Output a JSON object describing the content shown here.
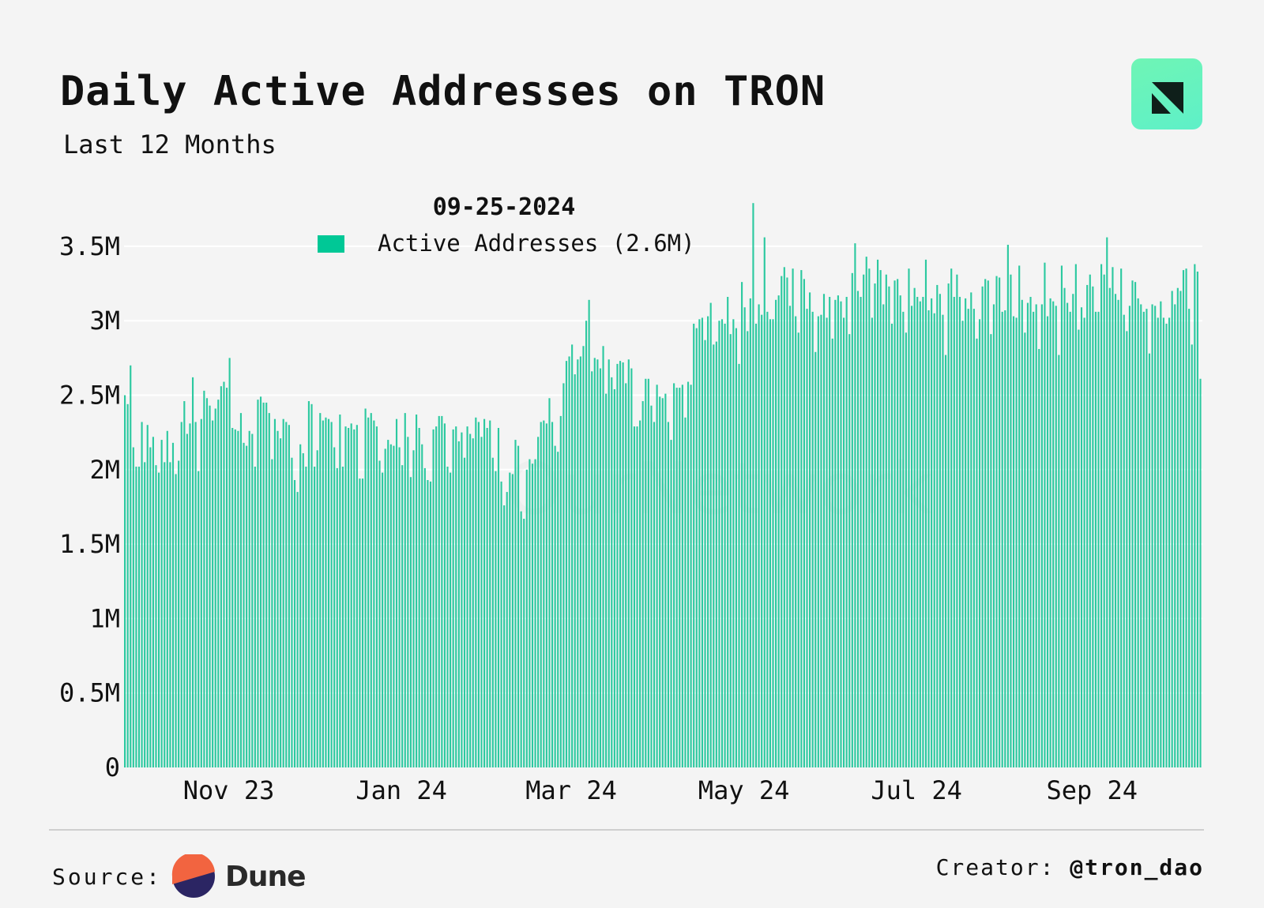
{
  "header": {
    "title": "Daily Active Addresses on TRON",
    "subtitle": "Last 12 Months"
  },
  "logo": {
    "icon": "ournetwork-logo-icon",
    "color": "#5ef0c8"
  },
  "watermark": "OurNetwork",
  "footer": {
    "source_label": "Source:",
    "source_name": "Dune",
    "creator_label": "Creator:",
    "creator_handle": "@tron_dao"
  },
  "tooltip": {
    "date": "09-25-2024",
    "series_label": "Active Addresses (2.6M)"
  },
  "colors": {
    "bar": "#2cc9a0",
    "background": "#f4f4f4",
    "accent": "#00c896"
  },
  "chart_data": {
    "type": "bar",
    "ylim": [
      0,
      3800000
    ],
    "y_ticks": [
      {
        "value": 0,
        "label": "0"
      },
      {
        "value": 500000,
        "label": "0.5M"
      },
      {
        "value": 1000000,
        "label": "1M"
      },
      {
        "value": 1500000,
        "label": "1.5M"
      },
      {
        "value": 2000000,
        "label": "2M"
      },
      {
        "value": 2500000,
        "label": "2.5M"
      },
      {
        "value": 3000000,
        "label": "3M"
      },
      {
        "value": 3500000,
        "label": "3.5M"
      }
    ],
    "x_ticks": [
      {
        "index": 37,
        "label": "Nov 23"
      },
      {
        "index": 98,
        "label": "Jan 24"
      },
      {
        "index": 158,
        "label": "Mar 24"
      },
      {
        "index": 219,
        "label": "May 24"
      },
      {
        "index": 280,
        "label": "Jul 24"
      },
      {
        "index": 342,
        "label": "Sep 24"
      }
    ],
    "grid": true,
    "series": [
      {
        "name": "Active Addresses",
        "values": [
          2.5,
          2.44,
          2.7,
          2.15,
          2.02,
          2.02,
          2.32,
          2.05,
          2.3,
          2.15,
          2.22,
          2.03,
          1.98,
          2.2,
          2.05,
          2.26,
          2.05,
          2.18,
          1.97,
          2.06,
          2.32,
          2.46,
          2.24,
          2.31,
          2.62,
          2.32,
          1.99,
          2.34,
          2.53,
          2.48,
          2.43,
          2.33,
          2.41,
          2.47,
          2.56,
          2.59,
          2.55,
          2.75,
          2.28,
          2.27,
          2.26,
          2.38,
          2.18,
          2.16,
          2.26,
          2.24,
          2.02,
          2.47,
          2.49,
          2.45,
          2.45,
          2.38,
          2.07,
          2.34,
          2.26,
          2.21,
          2.34,
          2.32,
          2.3,
          2.08,
          1.93,
          1.85,
          2.17,
          2.11,
          2.02,
          2.46,
          2.44,
          2.02,
          2.13,
          2.38,
          2.33,
          2.35,
          2.34,
          2.32,
          2.15,
          2.01,
          2.37,
          2.02,
          2.29,
          2.28,
          2.31,
          2.27,
          2.3,
          1.94,
          1.94,
          2.41,
          2.35,
          2.38,
          2.33,
          2.29,
          2.06,
          1.98,
          2.14,
          2.2,
          2.17,
          2.16,
          2.34,
          2.15,
          2.03,
          2.38,
          2.22,
          1.95,
          2.13,
          2.37,
          2.28,
          2.17,
          2.01,
          1.93,
          1.92,
          2.27,
          2.29,
          2.36,
          2.36,
          2.31,
          2.02,
          1.98,
          2.27,
          2.29,
          2.19,
          2.25,
          2.08,
          2.29,
          2.24,
          2.21,
          2.35,
          2.32,
          2.22,
          2.34,
          2.28,
          2.33,
          2.08,
          1.99,
          2.28,
          1.92,
          1.76,
          1.85,
          1.98,
          1.97,
          2.2,
          2.16,
          1.72,
          1.67,
          2.0,
          2.07,
          2.04,
          2.07,
          2.22,
          2.32,
          2.33,
          2.31,
          2.48,
          2.32,
          2.16,
          2.12,
          2.36,
          2.58,
          2.73,
          2.76,
          2.84,
          2.64,
          2.74,
          2.76,
          2.83,
          3.0,
          3.14,
          2.66,
          2.75,
          2.74,
          2.68,
          2.83,
          2.51,
          2.74,
          2.62,
          2.54,
          2.71,
          2.73,
          2.72,
          2.58,
          2.74,
          2.68,
          2.29,
          2.29,
          2.33,
          2.46,
          2.61,
          2.61,
          2.43,
          2.32,
          2.57,
          2.49,
          2.48,
          2.51,
          2.32,
          2.2,
          2.58,
          2.55,
          2.55,
          2.57,
          2.35,
          2.59,
          2.57,
          2.98,
          2.95,
          3.01,
          3.02,
          2.87,
          3.03,
          3.12,
          2.84,
          2.86,
          3.0,
          3.01,
          2.98,
          3.16,
          2.91,
          3.01,
          2.95,
          2.71,
          3.26,
          3.09,
          2.93,
          3.15,
          3.79,
          2.98,
          3.11,
          3.04,
          3.56,
          3.06,
          3.01,
          3.01,
          3.14,
          3.17,
          3.3,
          3.36,
          3.29,
          3.1,
          3.35,
          3.03,
          2.92,
          3.34,
          3.28,
          3.08,
          3.19,
          3.06,
          2.79,
          3.03,
          3.04,
          3.18,
          3.02,
          3.16,
          2.88,
          3.14,
          3.17,
          3.13,
          3.02,
          3.16,
          2.91,
          3.32,
          3.52,
          3.2,
          3.16,
          3.31,
          3.43,
          3.35,
          3.02,
          3.25,
          3.41,
          3.34,
          3.11,
          3.31,
          3.23,
          2.98,
          3.27,
          3.28,
          3.17,
          3.06,
          2.92,
          3.35,
          3.1,
          3.22,
          3.16,
          3.13,
          3.16,
          3.41,
          3.07,
          3.15,
          3.05,
          3.24,
          3.18,
          3.04,
          2.77,
          3.25,
          3.35,
          3.16,
          3.31,
          3.16,
          3.0,
          3.15,
          3.08,
          3.19,
          3.08,
          2.88,
          3.01,
          3.23,
          3.28,
          3.27,
          2.91,
          3.11,
          3.3,
          3.29,
          3.06,
          3.07,
          3.51,
          3.31,
          3.03,
          3.02,
          3.37,
          3.14,
          2.92,
          3.12,
          3.16,
          3.06,
          3.11,
          2.81,
          3.11,
          3.39,
          3.03,
          3.15,
          3.13,
          3.1,
          2.77,
          3.37,
          3.22,
          3.12,
          3.06,
          3.18,
          3.38,
          2.94,
          3.09,
          3.02,
          3.24,
          3.31,
          3.23,
          3.06,
          3.06,
          3.38,
          3.31,
          3.56,
          3.22,
          3.36,
          3.18,
          3.14,
          3.35,
          3.04,
          2.93,
          3.1,
          3.27,
          3.26,
          3.15,
          3.11,
          3.06,
          3.08,
          2.78,
          3.11,
          3.1,
          3.02,
          3.13,
          3.02,
          2.98,
          3.02,
          3.2,
          3.11,
          3.22,
          3.2,
          3.34,
          3.35,
          3.08,
          2.84,
          3.38,
          3.33,
          2.61
        ]
      }
    ]
  }
}
